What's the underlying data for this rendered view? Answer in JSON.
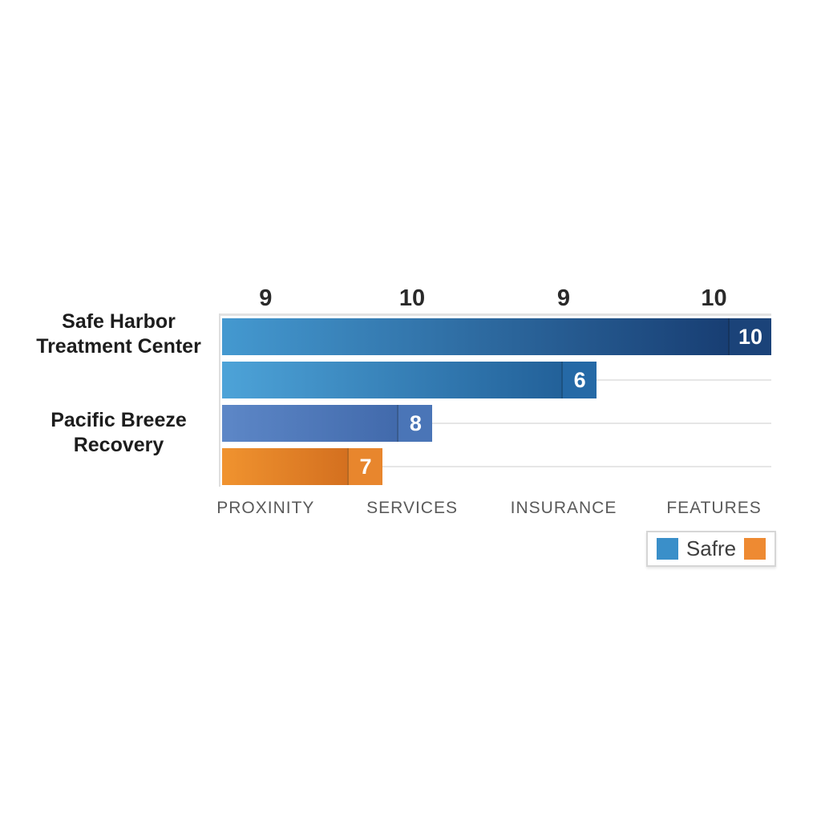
{
  "chart_data": {
    "type": "bar",
    "orientation": "horizontal",
    "xlim": [
      0,
      10
    ],
    "grid": true,
    "column_headers": [
      "9",
      "10",
      "9",
      "10"
    ],
    "column_positions_pct": [
      8.2,
      34.8,
      62.3,
      89.6
    ],
    "category_labels": [
      "PROXINITY",
      "SERVICES",
      "INSURANCE",
      "FEATURES"
    ],
    "groups": [
      {
        "line1": "Safe Harbor",
        "line2": "Treatment Center"
      },
      {
        "line1": "Pacific Breeze",
        "line2": "Recovery"
      }
    ],
    "bars": [
      {
        "group": "Safe Harbor Treatment Center",
        "value": 10,
        "width_pct": 100,
        "color_start": "#4499d0",
        "color_end": "#14366b",
        "chip_color": "#1b4379"
      },
      {
        "group": "Safe Harbor Treatment Center",
        "value": 6,
        "width_pct": 68.2,
        "color_start": "#4da3d8",
        "color_end": "#1e5a93",
        "chip_color": "#2569a6"
      },
      {
        "group": "Pacific Breeze Recovery",
        "value": 8,
        "width_pct": 38.3,
        "color_start": "#5d87c7",
        "color_end": "#3c64a6",
        "chip_color": "#4a75b7"
      },
      {
        "group": "Pacific Breeze Recovery",
        "value": 7,
        "width_pct": 29.2,
        "color_start": "#f0932f",
        "color_end": "#cc661b",
        "chip_color": "#e8862d"
      }
    ],
    "legend": {
      "label": "Safre",
      "swatch_colors": [
        "#3a8fc9",
        "#ee8a32"
      ],
      "position": "bottom-right"
    }
  }
}
